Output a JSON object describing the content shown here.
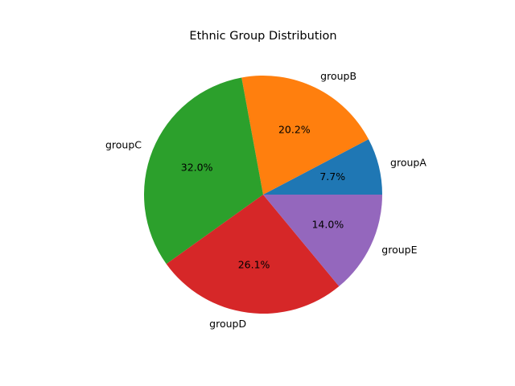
{
  "chart_data": {
    "type": "pie",
    "title": "Ethnic Group Distribution",
    "categories": [
      "groupA",
      "groupB",
      "groupC",
      "groupD",
      "groupE"
    ],
    "values": [
      7.7,
      20.2,
      32.0,
      26.1,
      14.0
    ],
    "labels": [
      "7.7%",
      "20.2%",
      "32.0%",
      "26.1%",
      "14.0%"
    ],
    "colors": [
      "#1f77b4",
      "#ff7f0e",
      "#2ca02c",
      "#d62728",
      "#9467bd"
    ],
    "start_angle_deg": 0,
    "direction": "counterclockwise",
    "legend": "none"
  }
}
